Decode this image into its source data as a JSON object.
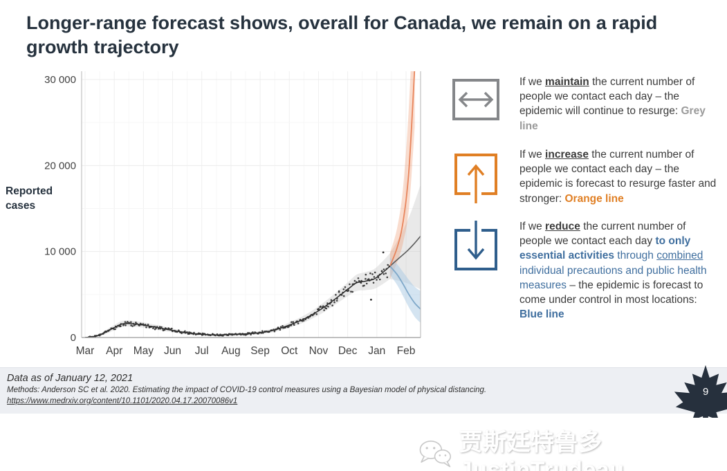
{
  "title": "Longer-range forecast shows, overall for Canada, we remain on a rapid growth trajectory",
  "colors": {
    "dark_navy": "#26323e",
    "body_text": "#3b3b3b",
    "grey_icon": "#85878a",
    "grey_line_text": "#9a9a9a",
    "orange_accent": "#e07f24",
    "blue_icon": "#2f5e8c",
    "blue_text": "#3f6e9e",
    "footer_bg": "#edeff3",
    "leaf_navy": "#26303d",
    "chart_observed_line": "#2b2b2b",
    "chart_dots": "#2f2f2f",
    "chart_grey_line": "#5b5b5b",
    "chart_grey_band": "#bfbfbf",
    "chart_orange_line": "#e8855c",
    "chart_orange_band": "#eb9268",
    "chart_blue_line": "#7fa8c9",
    "chart_blue_band": "#a9cae4",
    "axis_text": "#3f3f3f"
  },
  "ylabel_side": "Reported cases",
  "chart_data": {
    "type": "line",
    "title": "",
    "ylabel": "Reported cases",
    "xlabel": "",
    "grid": true,
    "legend_position": "none",
    "ylim": [
      0,
      30000
    ],
    "xlim_month_index": [
      0,
      11.5
    ],
    "months": [
      "Mar",
      "Apr",
      "May",
      "Jun",
      "Jul",
      "Aug",
      "Sep",
      "Oct",
      "Nov",
      "Dec",
      "Jan",
      "Feb"
    ],
    "yticks": [
      {
        "v": 0,
        "label": "0"
      },
      {
        "v": 10000,
        "label": "10 000"
      },
      {
        "v": 20000,
        "label": "20 000"
      },
      {
        "v": 30000,
        "label": "30 000"
      }
    ],
    "observed": {
      "name": "Reported cases (fitted line with confidence band and daily dots)",
      "x": [
        0,
        0.25,
        0.5,
        0.75,
        1.0,
        1.3,
        1.7,
        2.0,
        2.5,
        3.0,
        3.5,
        4.0,
        4.5,
        5.0,
        5.5,
        6.0,
        6.5,
        7.0,
        7.5,
        8.0,
        8.5,
        9.0,
        9.3,
        9.6,
        9.9,
        10.15,
        10.45
      ],
      "y": [
        10,
        80,
        280,
        700,
        1150,
        1600,
        1580,
        1450,
        1150,
        820,
        550,
        370,
        300,
        360,
        420,
        560,
        880,
        1450,
        2150,
        3100,
        4300,
        5600,
        6350,
        6550,
        6800,
        7400,
        8300
      ],
      "half": [
        40,
        60,
        130,
        230,
        300,
        350,
        330,
        310,
        270,
        220,
        170,
        140,
        130,
        140,
        150,
        170,
        220,
        300,
        400,
        520,
        650,
        800,
        950,
        1050,
        1150,
        1300,
        1500
      ]
    },
    "outliers": [
      [
        9.8,
        4400
      ],
      [
        10.22,
        9900
      ]
    ],
    "forecast": [
      {
        "name": "Grey line",
        "scenario": "maintain current contacts",
        "x": [
          10.45,
          10.75,
          11.05,
          11.25,
          11.5
        ],
        "y": [
          8300,
          9200,
          10100,
          10800,
          11800
        ],
        "upper": [
          9800,
          11500,
          13600,
          15300,
          17800
        ],
        "lower": [
          6800,
          6600,
          6300,
          6000,
          5600
        ]
      },
      {
        "name": "Orange line",
        "scenario": "increase contacts",
        "x": [
          10.45,
          10.7,
          10.9,
          11.1,
          11.3
        ],
        "y": [
          8300,
          10500,
          13500,
          19500,
          31500
        ],
        "upper": [
          9800,
          12800,
          17500,
          27000,
          42000
        ],
        "lower": [
          6800,
          8800,
          11000,
          15000,
          24500
        ]
      },
      {
        "name": "Blue line",
        "scenario": "reduce contacts to essential activities",
        "x": [
          10.45,
          10.7,
          10.9,
          11.1,
          11.3,
          11.5
        ],
        "y": [
          8300,
          7300,
          6200,
          5000,
          4000,
          3300
        ],
        "upper": [
          9300,
          8500,
          7600,
          6700,
          5900,
          5400
        ],
        "lower": [
          7300,
          6100,
          4800,
          3500,
          2400,
          1700
        ]
      }
    ]
  },
  "annotations": [
    {
      "icon": "maintain-double-arrow",
      "segments": [
        {
          "t": "If we ",
          "s": "n"
        },
        {
          "t": "maintain",
          "s": "key"
        },
        {
          "t": " the current number of people we contact each day – the epidemic will continue to resurge: ",
          "s": "n"
        },
        {
          "t": "Grey line",
          "s": "grey"
        }
      ]
    },
    {
      "icon": "increase-up-arrow",
      "segments": [
        {
          "t": "If we ",
          "s": "n"
        },
        {
          "t": "increase",
          "s": "key"
        },
        {
          "t": " the current number of people we contact each day – the epidemic is forecast to resurge faster and stronger: ",
          "s": "n"
        },
        {
          "t": "Orange line",
          "s": "orangeb"
        }
      ]
    },
    {
      "icon": "reduce-down-arrow",
      "segments": [
        {
          "t": "If we ",
          "s": "n"
        },
        {
          "t": "reduce",
          "s": "key"
        },
        {
          "t": " the current number of people we contact each day ",
          "s": "n"
        },
        {
          "t": "to only essential activities",
          "s": "blueb"
        },
        {
          "t": " through ",
          "s": "blue"
        },
        {
          "t": "combined",
          "s": "blueu"
        },
        {
          "t": " individual precautions and public health measures ",
          "s": "blue"
        },
        {
          "t": " – the epidemic is forecast to come under control in most locations: ",
          "s": "n"
        },
        {
          "t": "Blue line",
          "s": "blueb"
        }
      ]
    }
  ],
  "footer": {
    "data_as_of": "Data as of January 12, 2021",
    "methods": "Methods: Anderson SC et al. 2020. Estimating the impact of COVID-19 control measures using a Bayesian model of physical distancing.",
    "link": "https://www.medrxiv.org/content/10.1101/2020.04.17.20070086v1"
  },
  "page_number": "9",
  "watermark": {
    "text": "贾斯廷特鲁多JustinTrudeau"
  }
}
